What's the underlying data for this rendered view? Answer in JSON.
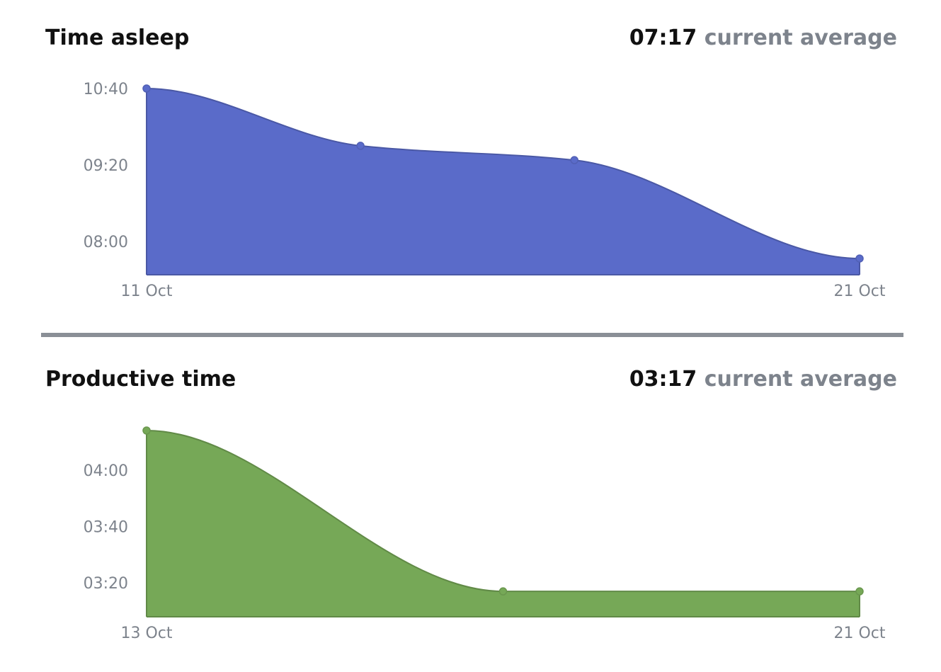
{
  "charts": [
    {
      "id": "sleep",
      "title": "Time asleep",
      "summary_value": "07:17",
      "summary_suffix": "current average"
    },
    {
      "id": "prod",
      "title": "Productive time",
      "summary_value": "03:17",
      "summary_suffix": "current average"
    }
  ],
  "chart_data": [
    {
      "type": "area",
      "title": "Time asleep",
      "x": [
        "2023-10-11",
        "2023-10-14",
        "2023-10-17",
        "2023-10-21"
      ],
      "x_ticks": [
        "11 Oct",
        "21 Oct"
      ],
      "y_unit": "hours:minutes",
      "y_values_minutes": [
        640,
        580,
        565,
        462
      ],
      "y_values": [
        "10:40",
        "09:40",
        "09:25",
        "07:42"
      ],
      "y_ticks": [
        "08:00",
        "09:20",
        "10:40"
      ],
      "ylim_minutes": [
        445,
        640
      ],
      "grid": false,
      "legend": "none",
      "color": "#5a6bc9"
    },
    {
      "type": "area",
      "title": "Productive time",
      "x": [
        "2023-10-13",
        "2023-10-17",
        "2023-10-21"
      ],
      "x_ticks": [
        "13 Oct",
        "21 Oct"
      ],
      "y_unit": "hours:minutes",
      "y_values_minutes": [
        254,
        197,
        197
      ],
      "y_values": [
        "04:14",
        "03:17",
        "03:17"
      ],
      "y_ticks": [
        "03:20",
        "03:40",
        "04:00"
      ],
      "ylim_minutes": [
        188,
        254
      ],
      "grid": false,
      "legend": "none",
      "color": "#76a857"
    }
  ]
}
